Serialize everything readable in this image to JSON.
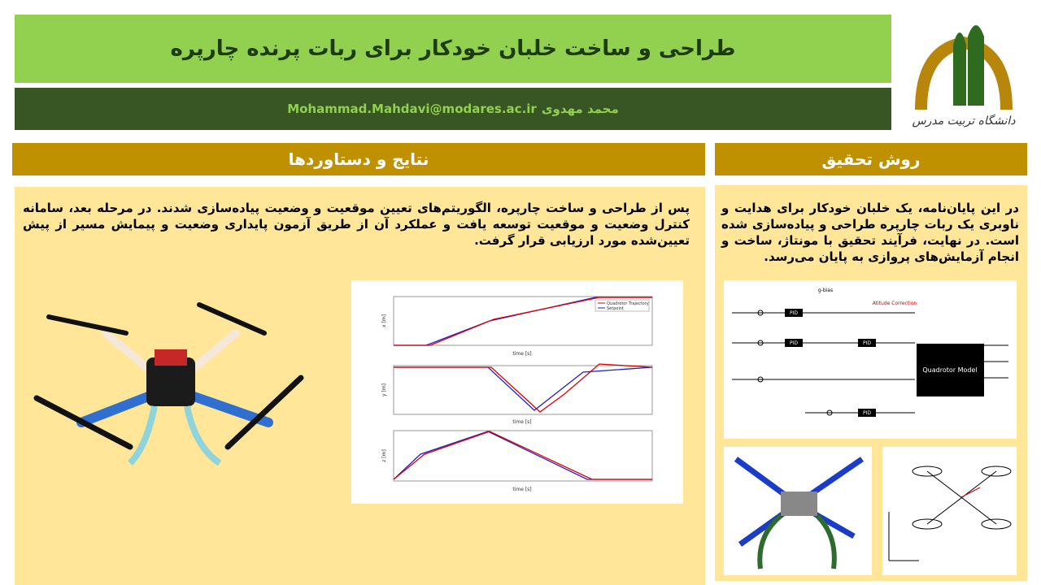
{
  "header": {
    "title": "طراحی و ساخت خلبان خودکار برای ربات پرنده چارپره",
    "author": "محمد مهدوی",
    "email": "Mohammad.Mahdavi@modares.ac.ir"
  },
  "logo": {
    "text": "دانشگاه تربیت مدرس"
  },
  "results": {
    "heading": "نتایج و دستاوردها",
    "paragraph": "پس از طراحی و ساخت چارپره، الگوریتم‌های تعیین موقعیت و وضعیت پیاده‌سازی شدند. در مرحله بعد، سامانه کنترل وضعیت و موقعیت توسعه یافت و عملکرد آن از طریق آزمون پایداری وضعیت و پیمایش مسیر از پیش تعیین‌شده مورد ارزیابی قرار گرفت."
  },
  "method": {
    "heading": "روش تحقیق",
    "paragraph": "در این پایان‌نامه، یک خلبان خودکار برای هدایت و ناوبری یک ربات چارپره طراحی و پیاده‌سازی شده است. در نهایت، فرآیند تحقیق با مونتاژ، ساخت و انجام آزمایش‌های پروازی به پایان می‌رسد."
  },
  "figures": {
    "trajectory_plot": {
      "legend": [
        "Quadrotor Trajectory",
        "Setpoint"
      ],
      "xlabel": "time [s]",
      "ylabels": [
        "x [m]",
        "y [m]",
        "z [m]"
      ]
    },
    "control_diagram": {
      "block": "Quadrotor Model",
      "controller": "PID",
      "gravity": "g-bias",
      "correction": "Atitude Correction"
    }
  }
}
